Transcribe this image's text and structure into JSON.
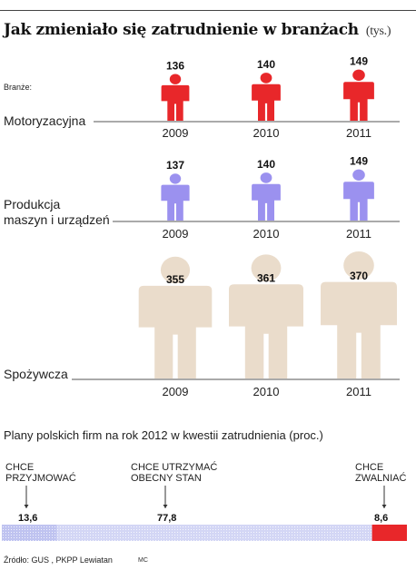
{
  "title": "Jak zmieniało się zatrudnienie w branżach",
  "title_unit": "(tys.)",
  "branches_label": "Branże:",
  "colors": {
    "motoryzacyjna": "#e8272a",
    "produkcja": "#9b91ef",
    "spozywcza": "#eadccb",
    "plans_accept": "#bfc3f0",
    "plans_keep": "#d3d6f5",
    "plans_fire": "#e8272a"
  },
  "icon": "person-icon",
  "chart_data": [
    {
      "type": "bar",
      "title": "",
      "categories": [
        "2009",
        "2010",
        "2011"
      ],
      "series": [
        {
          "name": "Motoryzacyjna",
          "values": [
            136,
            140,
            149
          ]
        },
        {
          "name": "Produkcja maszyn i urządzeń",
          "values": [
            137,
            140,
            149
          ]
        },
        {
          "name": "Spożywcza",
          "values": [
            355,
            361,
            370
          ]
        }
      ],
      "value_labels": {
        "motoryzacyjna": [
          "136",
          "140",
          "149"
        ],
        "produkcja": [
          "137",
          "140",
          "149"
        ],
        "spozywcza": [
          "355",
          "361",
          "370"
        ]
      },
      "sector_labels": {
        "motoryzacyjna": "Motoryzacyjna",
        "produkcja_line1": "Produkcja",
        "produkcja_line2": "maszyn i urządzeń",
        "spozywcza": "Spożywcza"
      },
      "years": [
        "2009",
        "2010",
        "2011"
      ]
    },
    {
      "type": "bar",
      "title": "Plany polskich firm na rok 2012 w kwestii zatrudnienia (proc.)",
      "categories": [
        "CHCE PRZYJMOWAĆ",
        "CHCE UTRZYMAĆ OBECNY STAN",
        "CHCE ZWALNIAĆ"
      ],
      "values": [
        13.6,
        77.8,
        8.6
      ],
      "value_labels": [
        "13,6",
        "77,8",
        "8,6"
      ],
      "category_lines": [
        [
          "CHCE",
          "PRZYJMOWAĆ"
        ],
        [
          "CHCE UTRZYMAĆ",
          "OBECNY STAN"
        ],
        [
          "CHCE",
          "ZWALNIAĆ"
        ]
      ]
    }
  ],
  "source": "Źródło: GUS , PKPP Lewiatan",
  "author": "MC"
}
